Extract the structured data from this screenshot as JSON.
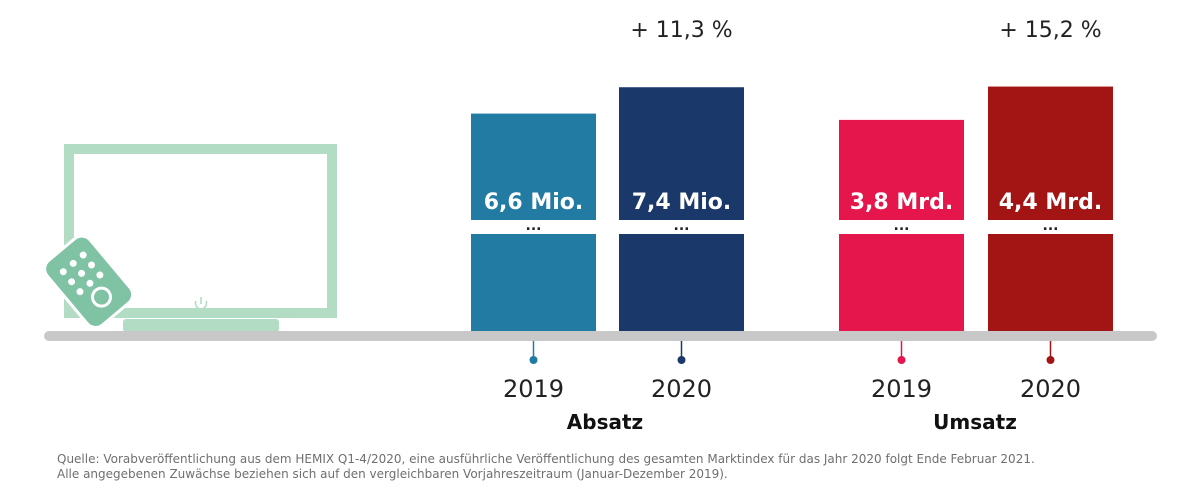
{
  "chart_data": [
    {
      "type": "bar",
      "group_label": "Absatz",
      "categories": [
        "2019",
        "2020"
      ],
      "values": [
        6.6,
        7.4
      ],
      "unit": "Mio.",
      "value_labels": [
        "6,6 Mio.",
        "7,4 Mio."
      ],
      "change_label": "+ 11,3 %",
      "colors": [
        "#217ba3",
        "#1b386a"
      ],
      "axis_break": "...",
      "ylim": [
        0,
        8.5
      ]
    },
    {
      "type": "bar",
      "group_label": "Umsatz",
      "categories": [
        "2019",
        "2020"
      ],
      "values": [
        3.8,
        4.4
      ],
      "unit": "Mrd.",
      "value_labels": [
        "3,8 Mrd.",
        "4,4 Mrd."
      ],
      "change_label": "+ 15,2 %",
      "colors": [
        "#e5164b",
        "#a31515"
      ],
      "axis_break": "...",
      "ylim": [
        0,
        5.04
      ]
    }
  ],
  "source": {
    "line1": "Quelle: Vorabveröffentlichung aus dem HEMIX Q1-4/2020, eine ausführliche Veröffentlichung des gesamten Marktindex für das Jahr 2020 folgt Ende Februar 2021.",
    "line2": "Alle angegebenen Zuwächse beziehen sich auf den vergleichbaren Vorjahreszeitraum (Januar-Dezember 2019)."
  },
  "illustration": {
    "icons": [
      "tv-icon",
      "remote-control-icon",
      "power-icon"
    ],
    "color": "#b3dcc4"
  }
}
